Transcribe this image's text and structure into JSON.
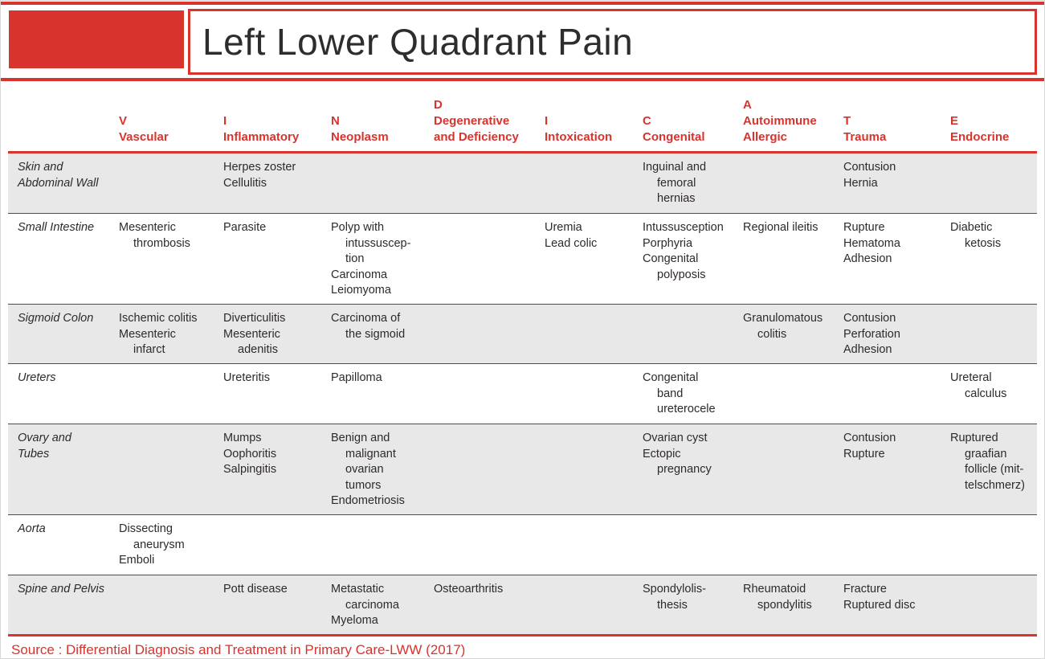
{
  "colors": {
    "accent_red": "#d7342e",
    "stripe_gray": "#e9e8e8",
    "text_dark": "#2e2a28"
  },
  "header": {
    "title": "Left Lower Quadrant Pain"
  },
  "source": {
    "text": "Source : Differential Diagnosis and Treatment in Primary Care-LWW (2017)"
  },
  "table": {
    "columns": [
      {
        "key": "vascular",
        "lines": [
          "V",
          "Vascular"
        ]
      },
      {
        "key": "inflammatory",
        "lines": [
          "I",
          "Inflammatory"
        ]
      },
      {
        "key": "neoplasm",
        "lines": [
          "N",
          "Neoplasm"
        ]
      },
      {
        "key": "degenerative",
        "lines": [
          "D",
          "Degenerative",
          "and Deficiency"
        ]
      },
      {
        "key": "intoxication",
        "lines": [
          "I",
          "Intoxication"
        ]
      },
      {
        "key": "congenital",
        "lines": [
          "C",
          "Congenital"
        ]
      },
      {
        "key": "autoimmune",
        "lines": [
          "A",
          "Autoimmune",
          "Allergic"
        ]
      },
      {
        "key": "trauma",
        "lines": [
          "T",
          "Trauma"
        ]
      },
      {
        "key": "endocrine",
        "lines": [
          "E",
          "Endocrine"
        ]
      }
    ],
    "rows": [
      {
        "key": "skin-abdominal-wall",
        "label_lines": [
          "Skin and",
          "Abdominal Wall"
        ],
        "shaded": true,
        "min_height": 74,
        "cells": [
          [],
          [
            [
              "Herpes zoster"
            ],
            [
              "Cellulitis"
            ]
          ],
          [],
          [],
          [],
          [
            [
              "Inguinal and",
              "femoral",
              "hernias"
            ]
          ],
          [],
          [
            [
              "Contusion"
            ],
            [
              "Hernia"
            ]
          ],
          []
        ]
      },
      {
        "key": "small-intestine",
        "label_lines": [
          "Small Intestine"
        ],
        "shaded": false,
        "min_height": 113,
        "cells": [
          [
            [
              "Mesenteric",
              "thrombosis"
            ]
          ],
          [
            [
              "Parasite"
            ]
          ],
          [
            [
              "Polyp with",
              "intussuscep-",
              "tion"
            ],
            [
              "Carcinoma"
            ],
            [
              "Leiomyoma"
            ]
          ],
          [],
          [
            [
              "Uremia"
            ],
            [
              "Lead colic"
            ]
          ],
          [
            [
              "Intussusception"
            ],
            [
              "Porphyria"
            ],
            [
              "Congenital",
              "polyposis"
            ]
          ],
          [
            [
              "Regional ileitis"
            ]
          ],
          [
            [
              "Rupture"
            ],
            [
              "Hematoma"
            ],
            [
              "Adhesion"
            ]
          ],
          [
            [
              "Diabetic",
              "ketosis"
            ]
          ]
        ]
      },
      {
        "key": "sigmoid-colon",
        "label_lines": [
          "Sigmoid Colon"
        ],
        "shaded": true,
        "min_height": 74,
        "cells": [
          [
            [
              "Ischemic colitis"
            ],
            [
              "Mesenteric",
              "infarct"
            ]
          ],
          [
            [
              "Diverticulitis"
            ],
            [
              "Mesenteric",
              "adenitis"
            ]
          ],
          [
            [
              "Carcinoma of",
              "the sigmoid"
            ]
          ],
          [],
          [],
          [],
          [
            [
              "Granulomatous",
              "colitis"
            ]
          ],
          [
            [
              "Contusion"
            ],
            [
              "Perforation"
            ],
            [
              "Adhesion"
            ]
          ],
          []
        ]
      },
      {
        "key": "ureters",
        "label_lines": [
          "Ureters"
        ],
        "shaded": false,
        "min_height": 75,
        "cells": [
          [],
          [
            [
              "Ureteritis"
            ]
          ],
          [
            [
              "Papilloma"
            ]
          ],
          [],
          [],
          [
            [
              "Congenital",
              "band",
              "ureterocele"
            ]
          ],
          [],
          [],
          [
            [
              "Ureteral",
              "calculus"
            ]
          ]
        ]
      },
      {
        "key": "ovary-tubes",
        "label_lines": [
          "Ovary and Tubes"
        ],
        "shaded": true,
        "min_height": 113,
        "cells": [
          [],
          [
            [
              "Mumps"
            ],
            [
              "Oophoritis"
            ],
            [
              "Salpingitis"
            ]
          ],
          [
            [
              "Benign and",
              "malignant",
              "ovarian",
              "tumors"
            ],
            [
              "Endometriosis"
            ]
          ],
          [],
          [],
          [
            [
              "Ovarian cyst"
            ],
            [
              "Ectopic",
              "pregnancy"
            ]
          ],
          [],
          [
            [
              "Contusion"
            ],
            [
              "Rupture"
            ]
          ],
          [
            [
              "Ruptured",
              "graafian",
              "follicle (mit-",
              "telschmerz)"
            ]
          ]
        ]
      },
      {
        "key": "aorta",
        "label_lines": [
          "Aorta"
        ],
        "shaded": false,
        "min_height": 75,
        "cells": [
          [
            [
              "Dissecting",
              "aneurysm"
            ],
            [
              "Emboli"
            ]
          ],
          [],
          [],
          [],
          [],
          [],
          [],
          [],
          []
        ]
      },
      {
        "key": "spine-pelvis",
        "label_lines": [
          "Spine and Pelvis"
        ],
        "shaded": true,
        "min_height": 70,
        "cells": [
          [],
          [
            [
              "Pott disease"
            ]
          ],
          [
            [
              "Metastatic",
              "carcinoma"
            ],
            [
              "Myeloma"
            ]
          ],
          [
            [
              "Osteoarthritis"
            ]
          ],
          [],
          [
            [
              "Spondylolis-",
              "thesis"
            ]
          ],
          [
            [
              "Rheumatoid",
              "spondylitis"
            ]
          ],
          [
            [
              "Fracture"
            ],
            [
              "Ruptured disc"
            ]
          ],
          []
        ]
      }
    ]
  }
}
